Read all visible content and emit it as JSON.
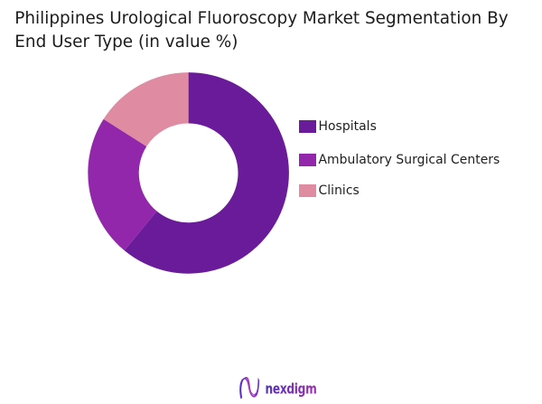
{
  "header": {
    "title_line1": "Philippines Urological Fluoroscopy Market Segmentation By",
    "title_line2": "End User Type (in value %)"
  },
  "chart_data": {
    "type": "pie",
    "subtype": "donut",
    "title": "Philippines Urological Fluoroscopy Market Segmentation By End User Type (in value %)",
    "categories": [
      "Hospitals",
      "Ambulatory Surgical Centers",
      "Clinics"
    ],
    "values": [
      61,
      23,
      16
    ],
    "unit": "% of value",
    "colors": [
      "#6a1b9a",
      "#9227ac",
      "#df8ca3"
    ],
    "start_angle_deg": 0,
    "direction": "clockwise",
    "inner_radius_ratio": 0.493,
    "legend_position": "right",
    "data_labels": "none"
  },
  "legend": {
    "items": [
      {
        "label": "Hospitals",
        "color": "#6a1b9a"
      },
      {
        "label": "Ambulatory Surgical Centers",
        "color": "#9227ac"
      },
      {
        "label": "Clinics",
        "color": "#df8ca3"
      }
    ]
  },
  "footer": {
    "brand": "nexdigm",
    "brand_colors": {
      "start": "#5531b5",
      "end": "#b431ad"
    }
  }
}
